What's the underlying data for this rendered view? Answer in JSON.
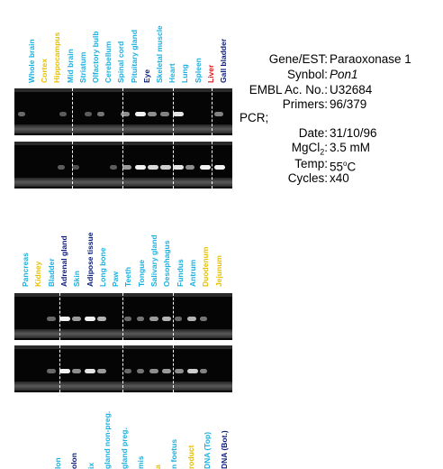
{
  "colors": {
    "cyan": "#1ab0e0",
    "yellow": "#e6c000",
    "navy": "#0a1a7a",
    "red": "#e01010",
    "green": "#22bb22",
    "black": "#000000"
  },
  "panel1": {
    "lanes": [
      {
        "label": "Whole brain",
        "color": "#1ab0e0"
      },
      {
        "label": "Cortex",
        "color": "#e6c000"
      },
      {
        "label": "Hippocampus",
        "color": "#e6c000"
      },
      {
        "label": "Mid brain",
        "color": "#1ab0e0"
      },
      {
        "label": "Striatum",
        "color": "#1ab0e0"
      },
      {
        "label": "Olfactory bulb",
        "color": "#1ab0e0"
      },
      {
        "label": "Cerebellum",
        "color": "#1ab0e0"
      },
      {
        "label": "Spinal cord",
        "color": "#1ab0e0"
      },
      {
        "label": "Pituitary gland",
        "color": "#1ab0e0"
      },
      {
        "label": "Eye",
        "color": "#0a1a7a"
      },
      {
        "label": "Skeletal muscle",
        "color": "#1ab0e0"
      },
      {
        "label": "Heart",
        "color": "#1ab0e0"
      },
      {
        "label": "Lung",
        "color": "#1ab0e0"
      },
      {
        "label": "Spleen",
        "color": "#1ab0e0"
      },
      {
        "label": "Liver",
        "color": "#e01010"
      },
      {
        "label": "Gall bladder",
        "color": "#0a1a7a"
      }
    ]
  },
  "panel2": {
    "lanes": [
      {
        "label": "Pancreas",
        "color": "#1ab0e0"
      },
      {
        "label": "Kidney",
        "color": "#e6c000"
      },
      {
        "label": "Bladder",
        "color": "#1ab0e0"
      },
      {
        "label": "Adrenal gland",
        "color": "#0a1a7a"
      },
      {
        "label": "Skin",
        "color": "#1ab0e0"
      },
      {
        "label": "Adipose tissue",
        "color": "#0a1a7a"
      },
      {
        "label": "Long bone",
        "color": "#1ab0e0"
      },
      {
        "label": "Paw",
        "color": "#1ab0e0"
      },
      {
        "label": "Teeth",
        "color": "#1ab0e0"
      },
      {
        "label": "Tongue",
        "color": "#1ab0e0"
      },
      {
        "label": "Salivary gland",
        "color": "#1ab0e0"
      },
      {
        "label": "Oesophagus",
        "color": "#1ab0e0"
      },
      {
        "label": "Fundus",
        "color": "#1ab0e0"
      },
      {
        "label": "Antrum",
        "color": "#1ab0e0"
      },
      {
        "label": "Duodenum",
        "color": "#e6c000"
      },
      {
        "label": "Jejunum",
        "color": "#e6c000"
      }
    ]
  },
  "panel3": {
    "lanes": [
      {
        "label": "",
        "color": "#22bb22"
      },
      {
        "label": "lon",
        "color": "#1ab0e0"
      },
      {
        "label": "olon",
        "color": "#0a1a7a"
      },
      {
        "label": "ix",
        "color": "#1ab0e0"
      },
      {
        "label": "gland non-preg.",
        "color": "#1ab0e0"
      },
      {
        "label": "gland preg.",
        "color": "#1ab0e0"
      },
      {
        "label": "mis",
        "color": "#1ab0e0"
      },
      {
        "label": "a",
        "color": "#e6c000"
      },
      {
        "label": "n foetus",
        "color": "#1ab0e0"
      },
      {
        "label": "roduct",
        "color": "#e6c000"
      },
      {
        "label": "DNA (Top)",
        "color": "#1ab0e0"
      },
      {
        "label": "DNA (Bot.)",
        "color": "#0a1a7a"
      }
    ]
  },
  "info": {
    "gene_key": "Gene/EST:",
    "gene_val": "Paraoxonase 1",
    "symbol_key": "Synbol:",
    "symbol_val": "Pon1",
    "embl_key": "EMBL Ac. No.:",
    "embl_val": "U32684",
    "primers_key": "Primers:",
    "primers_val": "96/379",
    "pcr": "PCR;",
    "date_key": "Date:",
    "date_val": "31/10/96",
    "mgcl_key": "MgCl",
    "mgcl_sub": "2",
    "mgcl_colon": ":",
    "mgcl_val": "3.5 mM",
    "temp_key": "Temp:",
    "temp_val": "55",
    "temp_sup": "o",
    "temp_unit": "C",
    "cycles_key": "Cycles:",
    "cycles_val": "x40"
  }
}
